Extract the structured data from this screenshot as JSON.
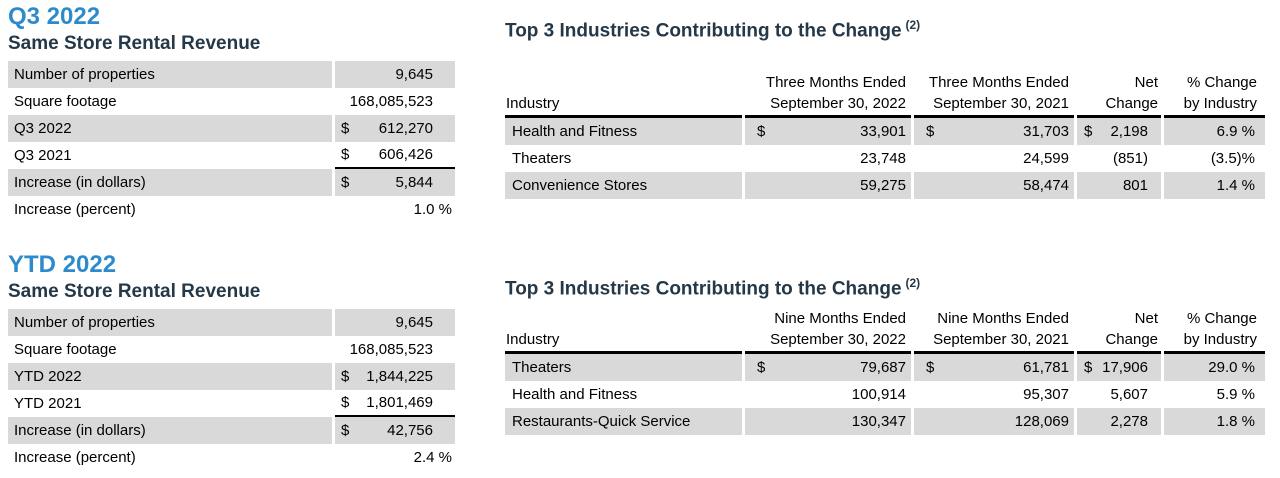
{
  "colors": {
    "accent_blue": "#2E8BCB",
    "heading_navy": "#253848",
    "row_gray": "#D9D9D9"
  },
  "sections": {
    "q3_summary": {
      "period": "Q3 2022",
      "subtitle": "Same Store Rental Revenue",
      "rows": [
        {
          "label": "Number of properties",
          "cur": "",
          "value": "9,645"
        },
        {
          "label": "Square footage",
          "cur": "",
          "value": "168,085,523"
        },
        {
          "label": "Q3 2022",
          "cur": "$",
          "value": "612,270"
        },
        {
          "label": "Q3 2021",
          "cur": "$",
          "value": "606,426"
        },
        {
          "label": "Increase (in dollars)",
          "cur": "$",
          "value": "5,844"
        },
        {
          "label": "Increase (percent)",
          "cur": "",
          "value": "1.0 %"
        }
      ]
    },
    "q3_industries": {
      "title": "Top 3 Industries Contributing to the Change",
      "footnote": "(2)",
      "headers": {
        "industry": "Industry",
        "period1_line1": "Three Months Ended",
        "period1_line2": "September 30, 2022",
        "period2_line1": "Three Months Ended",
        "period2_line2": "September 30, 2021",
        "net_line1": "Net",
        "net_line2": "Change",
        "pct_line1": "% Change",
        "pct_line2": "by Industry"
      },
      "rows": [
        {
          "name": "Health and Fitness",
          "cur1": "$",
          "v1": "33,901",
          "cur2": "$",
          "v2": "31,703",
          "curn": "$",
          "net": "2,198",
          "pct": "6.9 %"
        },
        {
          "name": "Theaters",
          "cur1": "",
          "v1": "23,748",
          "cur2": "",
          "v2": "24,599",
          "curn": "",
          "net": "(851)",
          "pct": "(3.5)%"
        },
        {
          "name": "Convenience Stores",
          "cur1": "",
          "v1": "59,275",
          "cur2": "",
          "v2": "58,474",
          "curn": "",
          "net": "801",
          "pct": "1.4 %"
        }
      ]
    },
    "ytd_summary": {
      "period": "YTD 2022",
      "subtitle": "Same Store Rental Revenue",
      "rows": [
        {
          "label": "Number of properties",
          "cur": "",
          "value": "9,645"
        },
        {
          "label": "Square footage",
          "cur": "",
          "value": "168,085,523"
        },
        {
          "label": "YTD 2022",
          "cur": "$",
          "value": "1,844,225"
        },
        {
          "label": "YTD 2021",
          "cur": "$",
          "value": "1,801,469"
        },
        {
          "label": "Increase (in dollars)",
          "cur": "$",
          "value": "42,756"
        },
        {
          "label": "Increase (percent)",
          "cur": "",
          "value": "2.4 %"
        }
      ]
    },
    "ytd_industries": {
      "title": "Top 3 Industries Contributing to the Change",
      "footnote": "(2)",
      "headers": {
        "industry": "Industry",
        "period1_line1": "Nine Months Ended",
        "period1_line2": "September 30, 2022",
        "period2_line1": "Nine Months Ended",
        "period2_line2": "September 30, 2021",
        "net_line1": "Net",
        "net_line2": "Change",
        "pct_line1": "% Change",
        "pct_line2": "by Industry"
      },
      "rows": [
        {
          "name": "Theaters",
          "cur1": "$",
          "v1": "79,687",
          "cur2": "$",
          "v2": "61,781",
          "curn": "$",
          "net": "17,906",
          "pct": "29.0 %"
        },
        {
          "name": "Health and Fitness",
          "cur1": "",
          "v1": "100,914",
          "cur2": "",
          "v2": "95,307",
          "curn": "",
          "net": "5,607",
          "pct": "5.9 %"
        },
        {
          "name": "Restaurants-Quick Service",
          "cur1": "",
          "v1": "130,347",
          "cur2": "",
          "v2": "128,069",
          "curn": "",
          "net": "2,278",
          "pct": "1.8 %"
        }
      ]
    }
  }
}
